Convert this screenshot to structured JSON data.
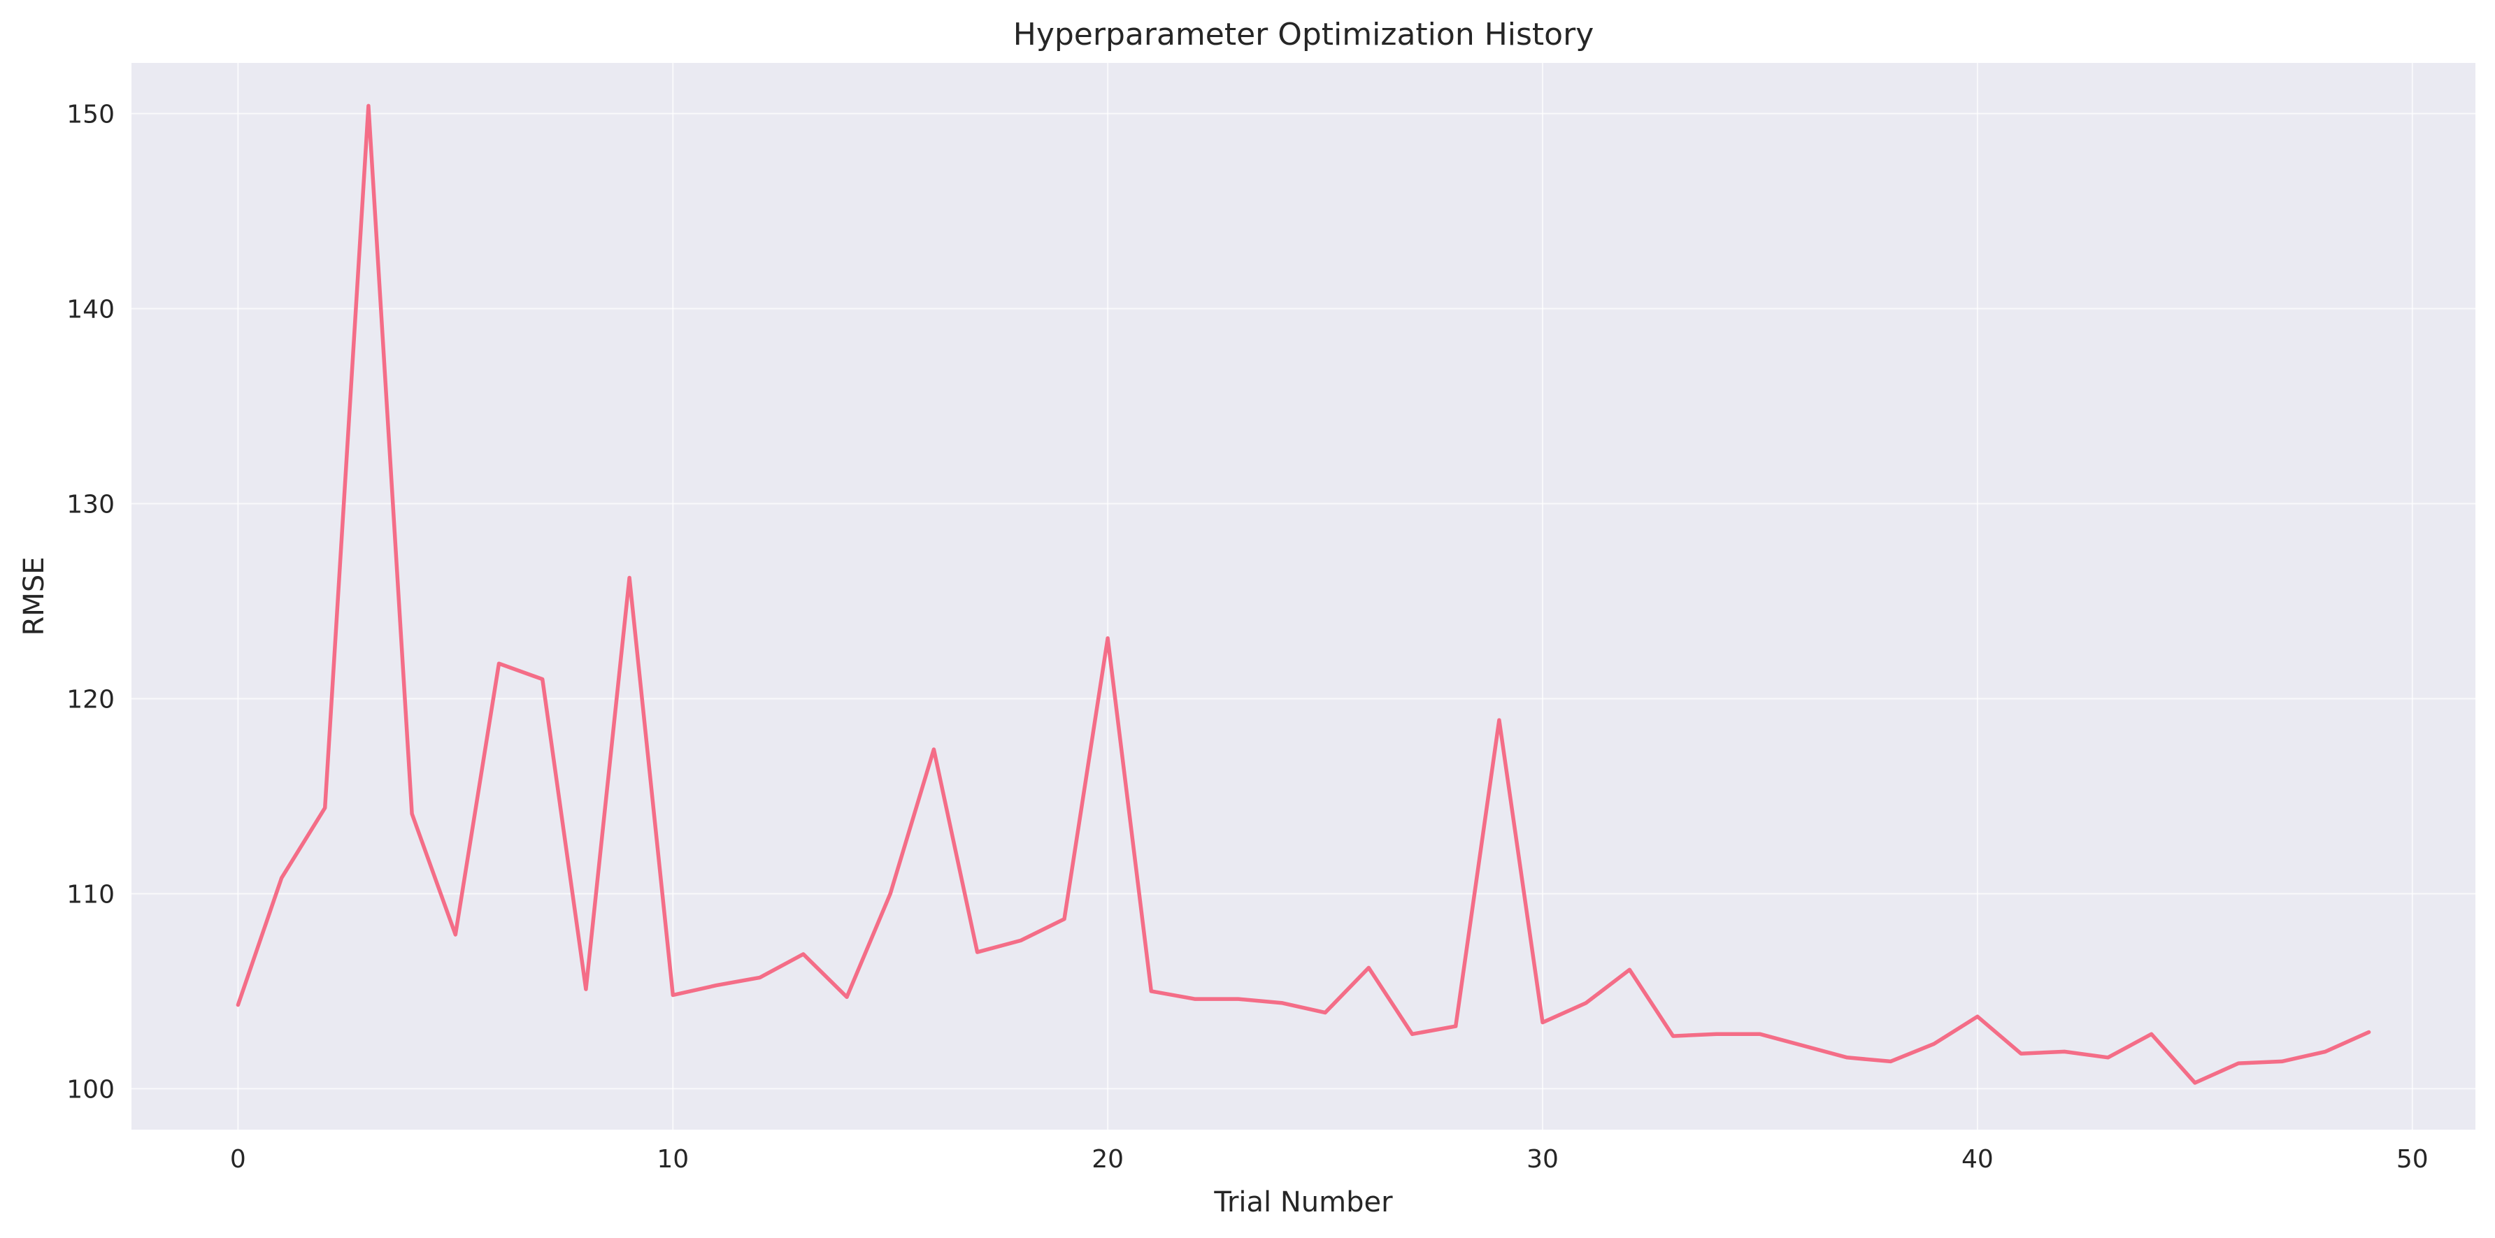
{
  "chart_data": {
    "type": "line",
    "title": "Hyperparameter Optimization History",
    "xlabel": "Trial Number",
    "ylabel": "RMSE",
    "xlim": [
      -2.45,
      51.45
    ],
    "ylim": [
      97.9,
      152.6
    ],
    "xticks": [
      0,
      10,
      20,
      30,
      40,
      50
    ],
    "yticks": [
      100,
      110,
      120,
      130,
      140,
      150
    ],
    "grid": true,
    "colors": {
      "plot_background": "#EAEAF2",
      "grid": "#ffffff",
      "line": "#F46D87",
      "text": "#262626"
    },
    "series": [
      {
        "x": [
          0,
          1,
          2,
          3,
          4,
          5,
          6,
          7,
          8,
          9,
          10,
          11,
          12,
          13,
          14,
          15,
          16,
          17,
          18,
          19,
          20,
          21,
          22,
          23,
          24,
          25,
          26,
          27,
          28,
          29,
          30,
          31,
          32,
          33,
          34,
          35,
          36,
          37,
          38,
          39,
          40,
          41,
          42,
          43,
          44,
          45,
          46,
          47,
          48,
          49
        ],
        "values": [
          104.3,
          110.8,
          114.4,
          150.4,
          114.1,
          107.9,
          121.8,
          121.0,
          105.1,
          126.2,
          104.8,
          105.3,
          105.7,
          106.9,
          104.7,
          110.0,
          117.4,
          107.0,
          107.6,
          108.7,
          123.1,
          105.0,
          104.6,
          104.6,
          104.4,
          103.9,
          106.2,
          102.8,
          103.2,
          118.9,
          103.4,
          104.4,
          106.1,
          102.7,
          102.8,
          102.8,
          102.2,
          101.6,
          101.4,
          102.3,
          103.7,
          101.8,
          101.9,
          101.6,
          102.8,
          100.3,
          101.3,
          101.4,
          101.9,
          102.9
        ]
      }
    ]
  }
}
